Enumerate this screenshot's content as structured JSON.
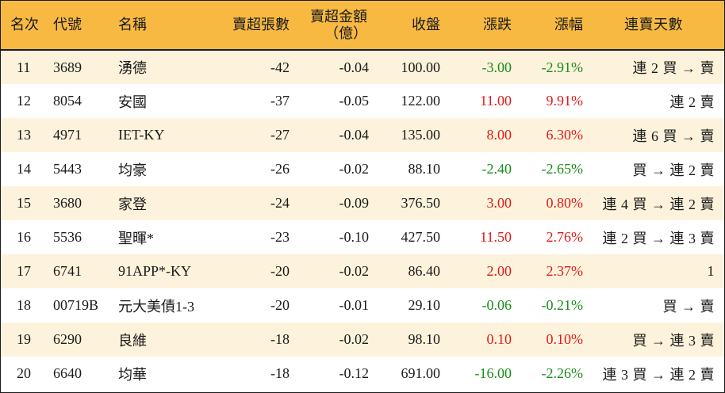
{
  "colors": {
    "header_bg": "#f7b942",
    "row_alt_bg": "#fdf3dc",
    "up": "#e01a1a",
    "down": "#1a8c1a"
  },
  "headers": {
    "rank": "名次",
    "code": "代號",
    "name": "名稱",
    "oversold_lots": "賣超張數",
    "oversold_amount_line1": "賣超金額",
    "oversold_amount_line2": "（億）",
    "close": "收盤",
    "change": "漲跌",
    "change_pct": "漲幅",
    "streak": "連賣天數"
  },
  "rows": [
    {
      "rank": "11",
      "code": "3689",
      "name": "湧德",
      "lots": "-42",
      "amount": "-0.04",
      "close": "100.00",
      "change": "-3.00",
      "pct": "-2.91%",
      "dir": "down",
      "streak": "連 2 買 → 賣"
    },
    {
      "rank": "12",
      "code": "8054",
      "name": "安國",
      "lots": "-37",
      "amount": "-0.05",
      "close": "122.00",
      "change": "11.00",
      "pct": "9.91%",
      "dir": "up",
      "streak": "連 2 賣"
    },
    {
      "rank": "13",
      "code": "4971",
      "name": "IET-KY",
      "lots": "-27",
      "amount": "-0.04",
      "close": "135.00",
      "change": "8.00",
      "pct": "6.30%",
      "dir": "up",
      "streak": "連 6 買 → 賣"
    },
    {
      "rank": "14",
      "code": "5443",
      "name": "均豪",
      "lots": "-26",
      "amount": "-0.02",
      "close": "88.10",
      "change": "-2.40",
      "pct": "-2.65%",
      "dir": "down",
      "streak": "買 → 連 2 賣"
    },
    {
      "rank": "15",
      "code": "3680",
      "name": "家登",
      "lots": "-24",
      "amount": "-0.09",
      "close": "376.50",
      "change": "3.00",
      "pct": "0.80%",
      "dir": "up",
      "streak": "連 4 買 → 連 2 賣"
    },
    {
      "rank": "16",
      "code": "5536",
      "name": "聖暉*",
      "lots": "-23",
      "amount": "-0.10",
      "close": "427.50",
      "change": "11.50",
      "pct": "2.76%",
      "dir": "up",
      "streak": "連 2 買 → 連 3 賣"
    },
    {
      "rank": "17",
      "code": "6741",
      "name": "91APP*-KY",
      "lots": "-20",
      "amount": "-0.02",
      "close": "86.40",
      "change": "2.00",
      "pct": "2.37%",
      "dir": "up",
      "streak": "1"
    },
    {
      "rank": "18",
      "code": "00719B",
      "name": "元大美債1-3",
      "lots": "-20",
      "amount": "-0.01",
      "close": "29.10",
      "change": "-0.06",
      "pct": "-0.21%",
      "dir": "down",
      "streak": "買 → 賣"
    },
    {
      "rank": "19",
      "code": "6290",
      "name": "良維",
      "lots": "-18",
      "amount": "-0.02",
      "close": "98.10",
      "change": "0.10",
      "pct": "0.10%",
      "dir": "up",
      "streak": "買 → 連 3 賣"
    },
    {
      "rank": "20",
      "code": "6640",
      "name": "均華",
      "lots": "-18",
      "amount": "-0.12",
      "close": "691.00",
      "change": "-16.00",
      "pct": "-2.26%",
      "dir": "down",
      "streak": "連 3 買 → 連 2 賣"
    }
  ]
}
